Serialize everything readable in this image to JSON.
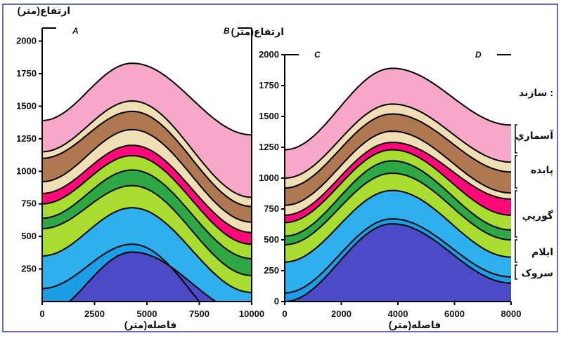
{
  "colors": {
    "background": "#ffffff",
    "frame": "#3a3aa8",
    "layer_lines": "#000000",
    "layers": [
      "#4b4bc8",
      "#1c9ee6",
      "#2fb0ee",
      "#a8dc30",
      "#2da845",
      "#a8dc30",
      "#ff0a78",
      "#f0deb4",
      "#b07850",
      "#f0deb4",
      "#f7a8c8"
    ]
  },
  "panels": [
    {
      "id": "left",
      "yaxis_label": "ارتفاع(متر)",
      "xaxis_label": "فاصله(متر)",
      "corner_left": "A",
      "corner_right": "B",
      "x_ticks": [
        "0",
        "2500",
        "5000",
        "7500",
        "10000"
      ],
      "y_ticks": [
        "250",
        "500",
        "750",
        "1000",
        "1250",
        "1500",
        "1750",
        "2000"
      ],
      "x_range": [
        0,
        10000
      ],
      "y_range": [
        0,
        2100
      ],
      "crest_x": 4300,
      "left_edge_boundaries": [
        -100,
        100,
        350,
        560,
        640,
        750,
        830,
        920,
        1100,
        1150,
        1390
      ],
      "crest_boundaries": [
        380,
        440,
        720,
        890,
        1010,
        1120,
        1200,
        1320,
        1460,
        1540,
        1830
      ],
      "right_edge_boundaries": [
        -100,
        -300,
        70,
        200,
        330,
        440,
        530,
        610,
        730,
        800,
        1280
      ]
    },
    {
      "id": "right",
      "yaxis_label": "ارتفاع(متر)",
      "xaxis_label": "فاصله(متر)",
      "corner_left": "C",
      "corner_right": "D",
      "x_ticks": [
        "0",
        "2000",
        "4000",
        "6000",
        "8000"
      ],
      "y_ticks": [
        "0",
        "250",
        "500",
        "750",
        "1000",
        "1250",
        "1500",
        "1750",
        "2000"
      ],
      "x_range": [
        0,
        8000
      ],
      "y_range": [
        0,
        2000
      ],
      "crest_x": 3800,
      "left_edge_boundaries": [
        0,
        70,
        320,
        460,
        530,
        640,
        700,
        780,
        920,
        1000,
        1230
      ],
      "crest_boundaries": [
        630,
        670,
        900,
        1040,
        1140,
        1230,
        1290,
        1380,
        1520,
        1600,
        1890
      ],
      "right_edge_boundaries": [
        150,
        200,
        360,
        500,
        580,
        700,
        830,
        880,
        1050,
        1130,
        1430
      ]
    }
  ],
  "formations": {
    "title": "سازند :",
    "items": [
      "آسماري",
      "پابده",
      "گورپي",
      "ايلام",
      "سروک"
    ]
  }
}
